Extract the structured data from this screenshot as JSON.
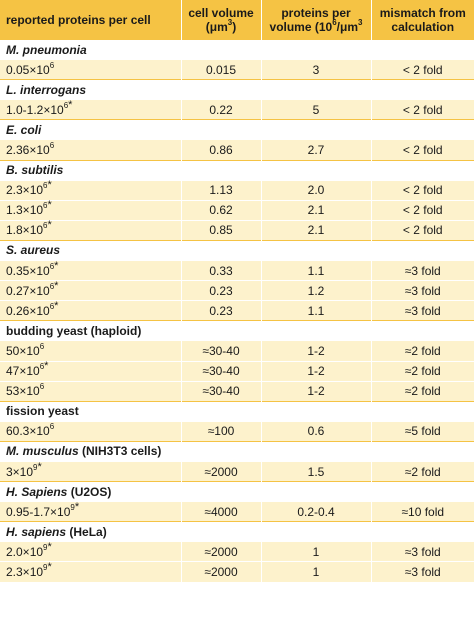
{
  "header": {
    "col1": "reported proteins per cell",
    "col2_line1": "cell volume",
    "col2_line2_pre": "(μm",
    "col2_line2_sup": "3",
    "col2_line2_post": ")",
    "col3_line1": "proteins per",
    "col3_line2_pre": "volume (10",
    "col3_line2_sup1": "6",
    "col3_line2_mid": "/μm",
    "col3_line2_sup2": "3",
    "col4_line1": "mismatch from",
    "col4_line2": "calculation"
  },
  "groups": [
    {
      "organism": "M. pneumonia",
      "italic": true,
      "suffix": "",
      "rows": [
        {
          "base": "0.05×10",
          "exp": "6",
          "star": "",
          "volume": "0.015",
          "density": "3",
          "mismatch": "< 2 fold"
        }
      ]
    },
    {
      "organism": "L. interrogans",
      "italic": true,
      "suffix": "",
      "rows": [
        {
          "base": "1.0-1.2×10",
          "exp": "6",
          "star": "*",
          "volume": "0.22",
          "density": "5",
          "mismatch": "< 2 fold"
        }
      ]
    },
    {
      "organism": "E. coli",
      "italic": true,
      "suffix": "",
      "rows": [
        {
          "base": "2.36×10",
          "exp": "6",
          "star": "",
          "volume": "0.86",
          "density": "2.7",
          "mismatch": "< 2 fold"
        }
      ]
    },
    {
      "organism": "B. subtilis",
      "italic": true,
      "suffix": "",
      "rows": [
        {
          "base": "2.3×10",
          "exp": "6",
          "star": "*",
          "volume": "1.13",
          "density": "2.0",
          "mismatch": "< 2 fold"
        },
        {
          "base": "1.3×10",
          "exp": "6",
          "star": "*",
          "volume": "0.62",
          "density": "2.1",
          "mismatch": "< 2 fold"
        },
        {
          "base": "1.8×10",
          "exp": "6",
          "star": "*",
          "volume": "0.85",
          "density": "2.1",
          "mismatch": "< 2 fold"
        }
      ]
    },
    {
      "organism": "S. aureus",
      "italic": true,
      "suffix": "",
      "rows": [
        {
          "base": "0.35×10",
          "exp": "6",
          "star": "*",
          "volume": "0.33",
          "density": "1.1",
          "mismatch": "≈3 fold"
        },
        {
          "base": "0.27×10",
          "exp": "6",
          "star": "*",
          "volume": "0.23",
          "density": "1.2",
          "mismatch": "≈3 fold"
        },
        {
          "base": "0.26×10",
          "exp": "6",
          "star": "*",
          "volume": "0.23",
          "density": "1.1",
          "mismatch": "≈3 fold"
        }
      ]
    },
    {
      "organism": "budding yeast (haploid)",
      "italic": false,
      "suffix": "",
      "rows": [
        {
          "base": "50×10",
          "exp": "6",
          "star": "",
          "volume": "≈30-40",
          "density": "1-2",
          "mismatch": "≈2 fold"
        },
        {
          "base": "47×10",
          "exp": "6",
          "star": "*",
          "volume": "≈30-40",
          "density": "1-2",
          "mismatch": "≈2 fold"
        },
        {
          "base": "53×10",
          "exp": "6",
          "star": "",
          "volume": "≈30-40",
          "density": "1-2",
          "mismatch": "≈2 fold"
        }
      ]
    },
    {
      "organism": "fission yeast",
      "italic": false,
      "suffix": "",
      "rows": [
        {
          "base": "60.3×10",
          "exp": "6",
          "star": "",
          "volume": "≈100",
          "density": "0.6",
          "mismatch": "≈5 fold"
        }
      ]
    },
    {
      "organism": "M. musculus",
      "italic": true,
      "suffix": " (NIH3T3 cells)",
      "rows": [
        {
          "base": "3×10",
          "exp": "9",
          "star": "*",
          "volume": "≈2000",
          "density": "1.5",
          "mismatch": "≈2 fold"
        }
      ]
    },
    {
      "organism": "H. Sapiens",
      "italic": true,
      "suffix": " (U2OS)",
      "rows": [
        {
          "base": "0.95-1.7×10",
          "exp": "9",
          "star": "*",
          "volume": "≈4000",
          "density": "0.2-0.4",
          "mismatch": "≈10 fold"
        }
      ]
    },
    {
      "organism": "H. sapiens",
      "italic": true,
      "suffix": " (HeLa)",
      "rows": [
        {
          "base": "2.0×10",
          "exp": "9",
          "star": "*",
          "volume": "≈2000",
          "density": "1",
          "mismatch": "≈3 fold"
        },
        {
          "base": "2.3×10",
          "exp": "9",
          "star": "*",
          "volume": "≈2000",
          "density": "1",
          "mismatch": "≈3 fold"
        }
      ]
    }
  ]
}
